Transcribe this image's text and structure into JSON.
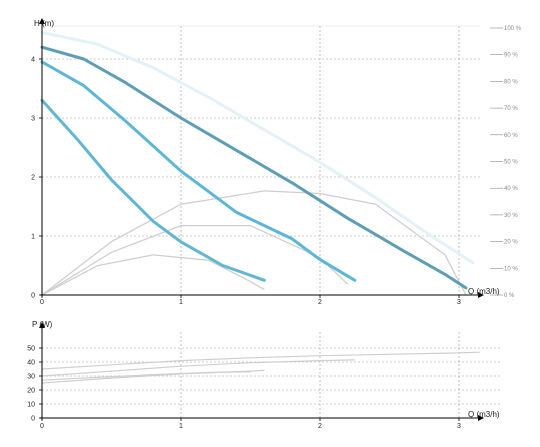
{
  "colors": {
    "curve_min": "#62b6d2",
    "curve_mid": "#5cb7d6",
    "curve_high": "#5e9eb4",
    "curve_max": "#e4f1f7",
    "efficiency": "#cfcfcf",
    "grid": "#999999",
    "axis": "#000000",
    "percent_scale": "#8a8a8a"
  },
  "chart_data": [
    {
      "type": "line",
      "title": "",
      "xlabel": "Q (m3/h)",
      "ylabel": "H (m)",
      "xlim": [
        0,
        3.2
      ],
      "ylim": [
        0,
        4.6
      ],
      "x_ticks": [
        "0",
        "1",
        "2",
        "3"
      ],
      "y_ticks": [
        "0",
        "1",
        "2",
        "3",
        "4"
      ],
      "grid": "dashed, at integer ticks",
      "secondary_axis": {
        "position": "right",
        "unit": "%",
        "ticks": [
          "0 %",
          "10 %",
          "20 %",
          "30 %",
          "40 %",
          "50 %",
          "60 %",
          "70 %",
          "80 %",
          "90 %",
          "100 %"
        ],
        "ylim": [
          0,
          100
        ]
      },
      "pump_curves": [
        {
          "level": "max",
          "x": [
            0,
            0.4,
            0.8,
            1.2,
            1.6,
            2.0,
            2.4,
            2.8,
            3.1
          ],
          "y": [
            4.45,
            4.25,
            3.85,
            3.35,
            2.8,
            2.25,
            1.65,
            1.0,
            0.55
          ]
        },
        {
          "level": "high",
          "x": [
            0,
            0.3,
            0.6,
            1.0,
            1.4,
            1.8,
            2.2,
            2.6,
            2.9,
            3.05
          ],
          "y": [
            4.2,
            4.0,
            3.6,
            3.0,
            2.45,
            1.9,
            1.3,
            0.75,
            0.35,
            0.12
          ]
        },
        {
          "level": "mid",
          "x": [
            0,
            0.3,
            0.6,
            1.0,
            1.4,
            1.8,
            2.0,
            2.25
          ],
          "y": [
            3.95,
            3.55,
            2.95,
            2.1,
            1.4,
            0.95,
            0.6,
            0.25
          ]
        },
        {
          "level": "min",
          "x": [
            0,
            0.25,
            0.5,
            0.8,
            1.0,
            1.3,
            1.6
          ],
          "y": [
            3.3,
            2.65,
            1.95,
            1.25,
            0.9,
            0.5,
            0.25
          ]
        }
      ],
      "efficiency_curves": [
        {
          "x": [
            0,
            0.5,
            1.0,
            1.6,
            2.0,
            2.4,
            2.9,
            3.05
          ],
          "y": [
            0,
            20,
            34,
            39,
            38,
            34,
            15,
            0
          ]
        },
        {
          "x": [
            0,
            0.5,
            1.0,
            1.5,
            2.0,
            2.2
          ],
          "y": [
            0,
            16,
            26,
            26,
            14,
            4
          ]
        },
        {
          "x": [
            0,
            0.4,
            0.8,
            1.2,
            1.5,
            1.6
          ],
          "y": [
            0,
            11,
            15,
            13,
            5,
            2
          ]
        }
      ]
    },
    {
      "type": "line",
      "title": "",
      "xlabel": "Q (m3/h)",
      "ylabel": "P (W)",
      "xlim": [
        0,
        3.2
      ],
      "ylim": [
        0,
        52
      ],
      "x_ticks": [
        "0",
        "1",
        "2",
        "3"
      ],
      "y_ticks": [
        "0",
        "10",
        "20",
        "30",
        "40",
        "50"
      ],
      "grid": "dashed, at ticks",
      "series": [
        {
          "level": "max",
          "x": [
            0,
            0.5,
            1.0,
            1.5,
            2.0,
            2.5,
            3.0,
            3.15
          ],
          "y": [
            35,
            38,
            41,
            43,
            44.5,
            45.5,
            46.5,
            47
          ]
        },
        {
          "level": "high",
          "x": [
            0,
            0.5,
            1.0,
            1.5,
            2.0,
            2.25
          ],
          "y": [
            30,
            33.5,
            37,
            39.5,
            41,
            41.5
          ]
        },
        {
          "level": "mid",
          "x": [
            0,
            0.5,
            1.0,
            1.5,
            1.6
          ],
          "y": [
            25,
            28.5,
            31.5,
            33.5,
            34
          ]
        },
        {
          "level": "low",
          "x": [
            0,
            0.4,
            0.8,
            1.2,
            1.5
          ],
          "y": [
            27,
            29,
            31,
            32.5,
            33
          ]
        }
      ]
    }
  ]
}
